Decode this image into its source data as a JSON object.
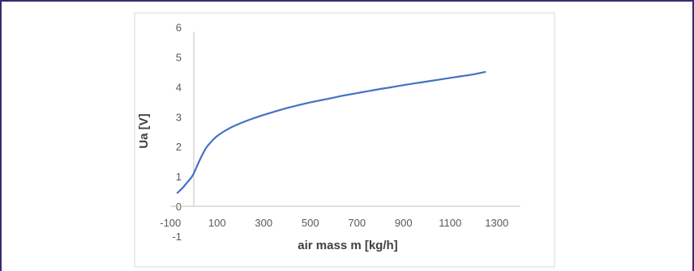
{
  "colors": {
    "frame": "#3c2a6e",
    "chart_border": "#d9d9d9",
    "axis": "#bfbfbf",
    "line": "#4472c4",
    "tick_text": "#595959",
    "label_text": "#404040"
  },
  "chart_data": {
    "type": "line",
    "title": "",
    "xlabel": "air mass m [kg/h]",
    "ylabel": "Ua [V]",
    "xlim": [
      -100,
      1400
    ],
    "ylim": [
      -1,
      6
    ],
    "grid": false,
    "legend": "none",
    "x_ticks": [
      "-100",
      "100",
      "300",
      "500",
      "700",
      "900",
      "1100",
      "1300"
    ],
    "y_ticks": [
      "-1",
      "0",
      "1",
      "2",
      "3",
      "4",
      "5",
      "6"
    ],
    "series": [
      {
        "color": "#4472c4",
        "x": [
          -70,
          -50,
          -30,
          -10,
          0,
          10,
          30,
          50,
          70,
          100,
          150,
          200,
          250,
          300,
          350,
          400,
          450,
          500,
          550,
          600,
          650,
          700,
          750,
          800,
          850,
          900,
          950,
          1000,
          1050,
          1100,
          1150,
          1200,
          1250
        ],
        "y": [
          0.45,
          0.6,
          0.78,
          0.97,
          1.1,
          1.28,
          1.62,
          1.92,
          2.12,
          2.35,
          2.6,
          2.78,
          2.93,
          3.06,
          3.18,
          3.29,
          3.39,
          3.48,
          3.56,
          3.64,
          3.72,
          3.79,
          3.86,
          3.93,
          3.99,
          4.06,
          4.12,
          4.18,
          4.24,
          4.3,
          4.36,
          4.42,
          4.5
        ]
      }
    ]
  }
}
